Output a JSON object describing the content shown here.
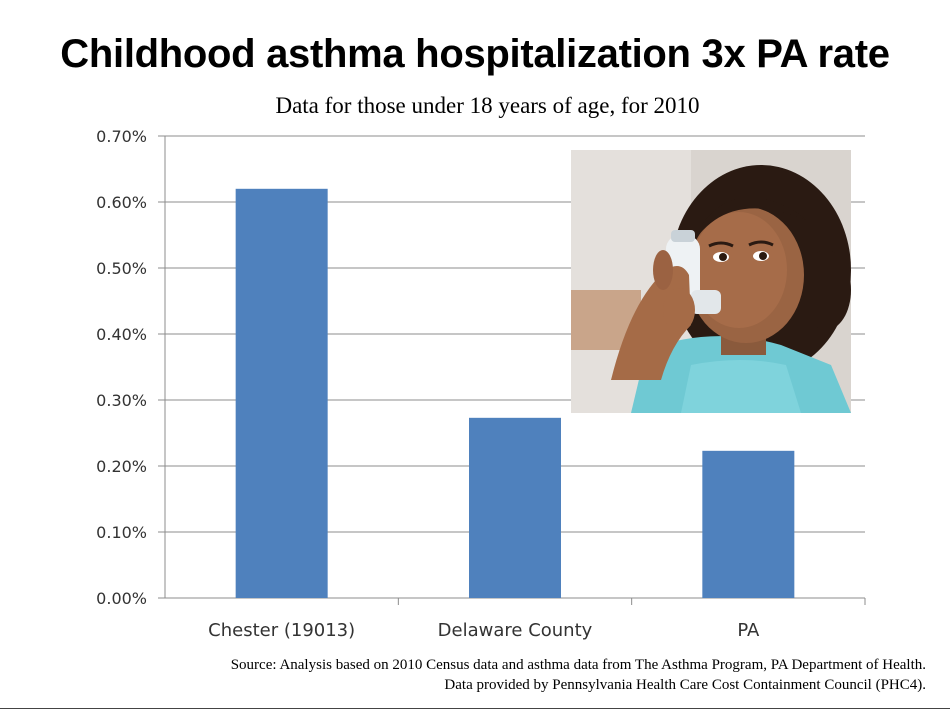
{
  "slide": {
    "title": "Childhood asthma hospitalization 3x PA rate",
    "subtitle": "Data for those under 18 years of age, for 2010"
  },
  "chart_data": {
    "type": "bar",
    "title": "Childhood asthma hospitalization 3x PA rate",
    "subtitle": "Data for those under 18 years of age, for 2010",
    "categories": [
      "Chester (19013)",
      "Delaware County",
      "PA"
    ],
    "values": [
      0.62,
      0.273,
      0.223
    ],
    "value_unit": "%",
    "xlabel": "",
    "ylabel": "",
    "ylim": [
      0,
      0.7
    ],
    "yticks": [
      "0.00%",
      "0.10%",
      "0.20%",
      "0.30%",
      "0.40%",
      "0.50%",
      "0.60%",
      "0.70%"
    ],
    "grid": true,
    "bar_color": "#4f81bd",
    "legend": "none"
  },
  "source": {
    "line1": "Source: Analysis based on 2010 Census data and asthma data from The Asthma Program, PA Department of Health.",
    "line2": "Data provided by Pennsylvania Health Care Cost Containment Council (PHC4)."
  },
  "photo": {
    "subject": "girl using asthma inhaler"
  }
}
